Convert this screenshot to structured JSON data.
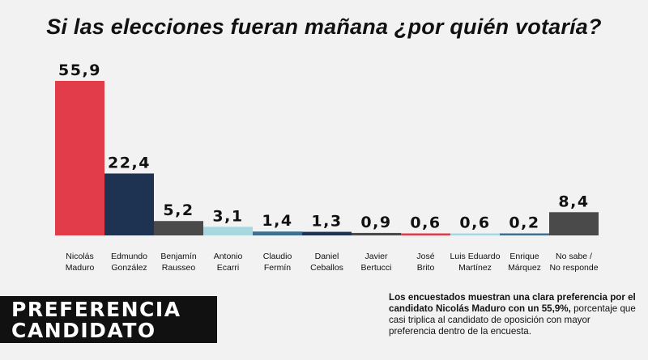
{
  "chart_data": {
    "type": "bar",
    "title": "Si las elecciones fueran mañana ¿por quién votaría?",
    "categories": [
      [
        "Nicolás",
        "Maduro"
      ],
      [
        "Edmundo",
        "González"
      ],
      [
        "Benjamín",
        "Rausseo"
      ],
      [
        "Antonio",
        "Ecarri"
      ],
      [
        "Claudio",
        "Fermín"
      ],
      [
        "Daniel",
        "Ceballos"
      ],
      [
        "Javier",
        "Bertucci"
      ],
      [
        "José",
        "Brito"
      ],
      [
        "Luis Eduardo",
        "Martínez"
      ],
      [
        "Enrique",
        "Márquez"
      ],
      [
        "No sabe /",
        "No responde"
      ]
    ],
    "values": [
      55.9,
      22.4,
      5.2,
      3.1,
      1.4,
      1.3,
      0.9,
      0.6,
      0.6,
      0.2,
      8.4
    ],
    "value_labels": [
      "55,9",
      "22,4",
      "5,2",
      "3,1",
      "1,4",
      "1,3",
      "0,9",
      "0,6",
      "0,6",
      "0,2",
      "8,4"
    ],
    "colors": [
      "#e23b4a",
      "#1e3252",
      "#4a4a4a",
      "#a7d8e0",
      "#3f6f8e",
      "#1e3252",
      "#4a4a4a",
      "#e23b4a",
      "#a7d8e0",
      "#3f6f8e",
      "#4a4a4a"
    ],
    "xlabel": "",
    "ylabel": "",
    "grid": false,
    "legend": "none"
  },
  "footer": {
    "line1": "PREFERENCIA",
    "line2": "CANDIDATO"
  },
  "summary": {
    "bold": "Los encuestados muestran una clara preferencia por el candidato Nicolás Maduro con un 55,9%,",
    "normal": "porcentaje que casi triplica al candidato de oposición con mayor preferencia dentro de la encuesta."
  }
}
